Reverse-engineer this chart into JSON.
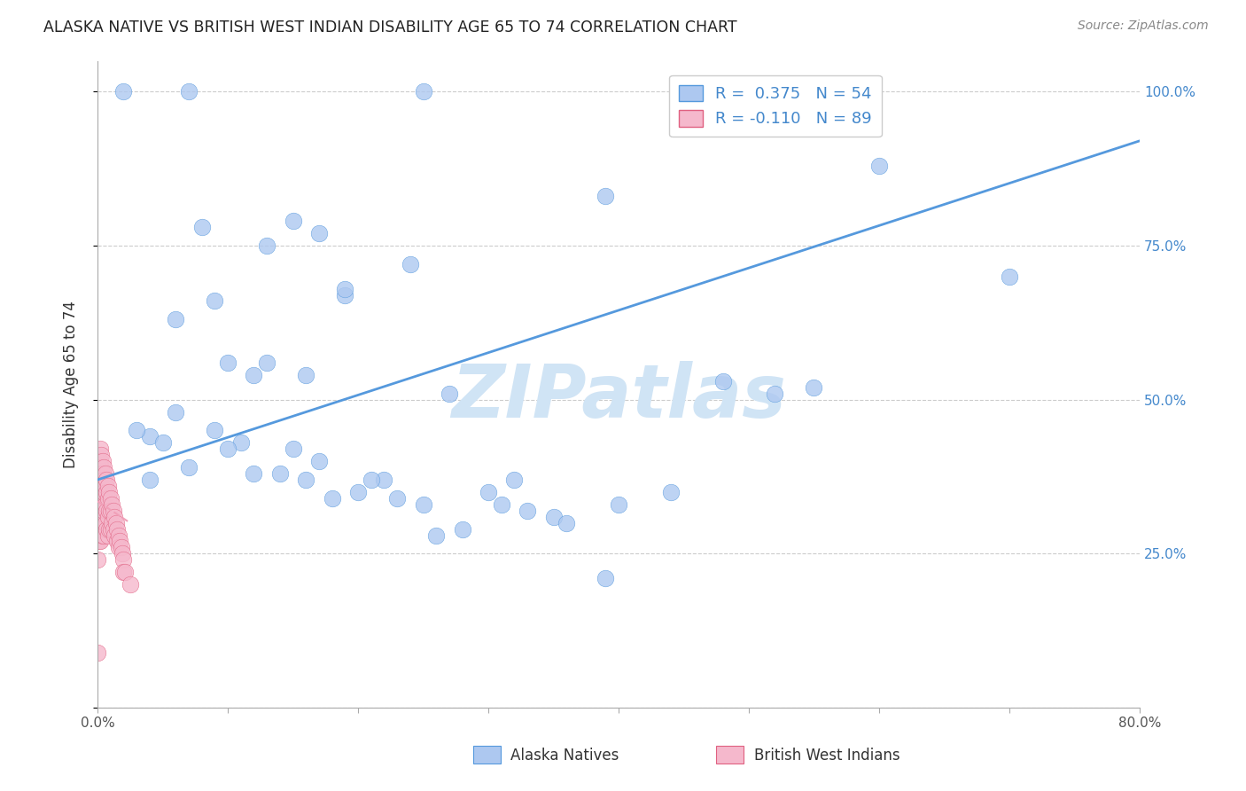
{
  "title": "ALASKA NATIVE VS BRITISH WEST INDIAN DISABILITY AGE 65 TO 74 CORRELATION CHART",
  "source": "Source: ZipAtlas.com",
  "ylabel": "Disability Age 65 to 74",
  "alaska_color": "#adc8f0",
  "alaska_edge": "#5599dd",
  "bwi_color": "#f5b8cc",
  "bwi_edge": "#e06080",
  "alaska_line_color": "#5599dd",
  "bwi_line_color": "#f0a0b8",
  "watermark_color": "#d0e4f5",
  "xlim": [
    0.0,
    0.8
  ],
  "ylim": [
    0.0,
    1.05
  ],
  "x_tick_vals": [
    0.0,
    0.1,
    0.2,
    0.3,
    0.4,
    0.5,
    0.6,
    0.7,
    0.8
  ],
  "x_tick_labels": [
    "0.0%",
    "",
    "",
    "",
    "",
    "",
    "",
    "",
    "80.0%"
  ],
  "y_tick_vals": [
    0.0,
    0.25,
    0.5,
    0.75,
    1.0
  ],
  "y_tick_labels": [
    "",
    "25.0%",
    "50.0%",
    "75.0%",
    "100.0%"
  ],
  "alaska_points_x": [
    0.02,
    0.07,
    0.25,
    0.39,
    0.08,
    0.15,
    0.17,
    0.13,
    0.1,
    0.13,
    0.16,
    0.19,
    0.24,
    0.19,
    0.04,
    0.05,
    0.06,
    0.09,
    0.11,
    0.12,
    0.14,
    0.15,
    0.17,
    0.18,
    0.2,
    0.22,
    0.25,
    0.28,
    0.3,
    0.35,
    0.39,
    0.52,
    0.55,
    0.7,
    0.4,
    0.44,
    0.31,
    0.33,
    0.36,
    0.16,
    0.21,
    0.23,
    0.04,
    0.07,
    0.26,
    0.12,
    0.06,
    0.09,
    0.27,
    0.32,
    0.03,
    0.1,
    0.48,
    0.6
  ],
  "alaska_points_y": [
    1.0,
    1.0,
    1.0,
    0.83,
    0.78,
    0.79,
    0.77,
    0.75,
    0.56,
    0.56,
    0.54,
    0.67,
    0.72,
    0.68,
    0.44,
    0.43,
    0.48,
    0.45,
    0.43,
    0.38,
    0.38,
    0.42,
    0.4,
    0.34,
    0.35,
    0.37,
    0.33,
    0.29,
    0.35,
    0.31,
    0.21,
    0.51,
    0.52,
    0.7,
    0.33,
    0.35,
    0.33,
    0.32,
    0.3,
    0.37,
    0.37,
    0.34,
    0.37,
    0.39,
    0.28,
    0.54,
    0.63,
    0.66,
    0.51,
    0.37,
    0.45,
    0.42,
    0.53,
    0.88
  ],
  "bwi_points_x": [
    0.0,
    0.0,
    0.0,
    0.0,
    0.0,
    0.0,
    0.0,
    0.0,
    0.0,
    0.0,
    0.0,
    0.0,
    0.0,
    0.001,
    0.001,
    0.001,
    0.001,
    0.001,
    0.001,
    0.001,
    0.001,
    0.001,
    0.001,
    0.001,
    0.001,
    0.002,
    0.002,
    0.002,
    0.002,
    0.002,
    0.002,
    0.002,
    0.002,
    0.002,
    0.003,
    0.003,
    0.003,
    0.003,
    0.003,
    0.003,
    0.003,
    0.003,
    0.004,
    0.004,
    0.004,
    0.004,
    0.004,
    0.005,
    0.005,
    0.005,
    0.005,
    0.005,
    0.006,
    0.006,
    0.006,
    0.006,
    0.007,
    0.007,
    0.007,
    0.007,
    0.008,
    0.008,
    0.008,
    0.008,
    0.009,
    0.009,
    0.009,
    0.01,
    0.01,
    0.01,
    0.011,
    0.011,
    0.012,
    0.012,
    0.013,
    0.013,
    0.014,
    0.015,
    0.015,
    0.016,
    0.016,
    0.017,
    0.018,
    0.019,
    0.02,
    0.02,
    0.021,
    0.025
  ],
  "bwi_points_y": [
    0.4,
    0.38,
    0.36,
    0.35,
    0.34,
    0.33,
    0.32,
    0.31,
    0.3,
    0.28,
    0.27,
    0.24,
    0.09,
    0.4,
    0.38,
    0.37,
    0.36,
    0.35,
    0.34,
    0.33,
    0.32,
    0.31,
    0.3,
    0.29,
    0.27,
    0.42,
    0.4,
    0.38,
    0.36,
    0.35,
    0.34,
    0.33,
    0.31,
    0.27,
    0.41,
    0.39,
    0.38,
    0.36,
    0.34,
    0.33,
    0.31,
    0.29,
    0.4,
    0.38,
    0.35,
    0.33,
    0.28,
    0.39,
    0.37,
    0.35,
    0.32,
    0.28,
    0.38,
    0.36,
    0.33,
    0.3,
    0.37,
    0.35,
    0.32,
    0.29,
    0.36,
    0.34,
    0.31,
    0.28,
    0.35,
    0.32,
    0.29,
    0.34,
    0.32,
    0.29,
    0.33,
    0.3,
    0.32,
    0.29,
    0.31,
    0.28,
    0.3,
    0.29,
    0.27,
    0.28,
    0.26,
    0.27,
    0.26,
    0.25,
    0.24,
    0.22,
    0.22,
    0.2
  ],
  "alaska_line_x": [
    0.0,
    0.8
  ],
  "alaska_line_y": [
    0.37,
    0.92
  ],
  "bwi_line_x": [
    0.0,
    0.025
  ],
  "bwi_line_y": [
    0.335,
    0.3
  ]
}
